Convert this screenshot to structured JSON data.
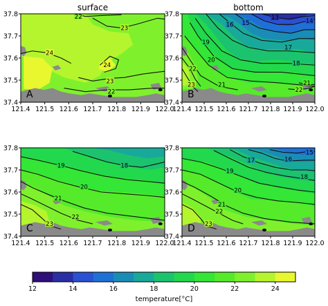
{
  "chart_data": [
    {
      "type": "heatmap",
      "panel": "A",
      "title": "surface",
      "xlim": [
        121.4,
        122.0
      ],
      "ylim": [
        37.4,
        37.8
      ],
      "x_ticks": [
        "121.4",
        "121.5",
        "121.6",
        "121.7",
        "121.8",
        "121.9",
        "122.0"
      ],
      "y_ticks": [
        "37.4",
        "37.5",
        "37.6",
        "37.7",
        "37.8"
      ],
      "contour_labels": [
        "22",
        "23",
        "24",
        "24",
        "23",
        "22"
      ]
    },
    {
      "type": "heatmap",
      "panel": "B",
      "title": "bottom",
      "xlim": [
        121.4,
        122.0
      ],
      "ylim": [
        37.4,
        37.8
      ],
      "x_ticks": [
        "121.4",
        "121.5",
        "121.6",
        "121.7",
        "121.8",
        "121.9",
        "122.0"
      ],
      "y_ticks": [
        "37.4",
        "37.5",
        "37.6",
        "37.7",
        "37.8"
      ],
      "contour_labels": [
        "13",
        "14",
        "15",
        "16",
        "17",
        "18",
        "19",
        "20",
        "21",
        "22",
        "23",
        "22",
        "21"
      ]
    },
    {
      "type": "heatmap",
      "panel": "C",
      "title": "",
      "xlim": [
        121.4,
        122.0
      ],
      "ylim": [
        37.4,
        37.8
      ],
      "x_ticks": [
        "121.4",
        "121.5",
        "121.6",
        "121.7",
        "121.8",
        "121.9",
        "122.0"
      ],
      "y_ticks": [
        "37.4",
        "37.5",
        "37.6",
        "37.7",
        "37.8"
      ],
      "contour_labels": [
        "18",
        "19",
        "20",
        "21",
        "22",
        "23"
      ]
    },
    {
      "type": "heatmap",
      "panel": "D",
      "title": "",
      "xlim": [
        121.4,
        122.0
      ],
      "ylim": [
        37.4,
        37.8
      ],
      "x_ticks": [
        "121.4",
        "121.5",
        "121.6",
        "121.7",
        "121.8",
        "121.9",
        "122.0"
      ],
      "y_ticks": [
        "37.4",
        "37.5",
        "37.6",
        "37.7",
        "37.8"
      ],
      "contour_labels": [
        "15",
        "16",
        "17",
        "18",
        "19",
        "20",
        "21",
        "22",
        "23"
      ]
    }
  ],
  "colorbar": {
    "label": "temperature[°C]",
    "range": [
      12,
      25
    ],
    "ticks": [
      "12",
      "14",
      "16",
      "18",
      "20",
      "22",
      "24"
    ],
    "colors": [
      "#2f0f7a",
      "#2a2ea5",
      "#2a51d1",
      "#1f70d6",
      "#1a8db6",
      "#19a99a",
      "#1cc36f",
      "#22d84d",
      "#34e636",
      "#55eb2a",
      "#7ff12c",
      "#b4f52e",
      "#e8f72e"
    ]
  },
  "colors": {
    "land": "#8a8a8a",
    "contour": "#111111"
  }
}
